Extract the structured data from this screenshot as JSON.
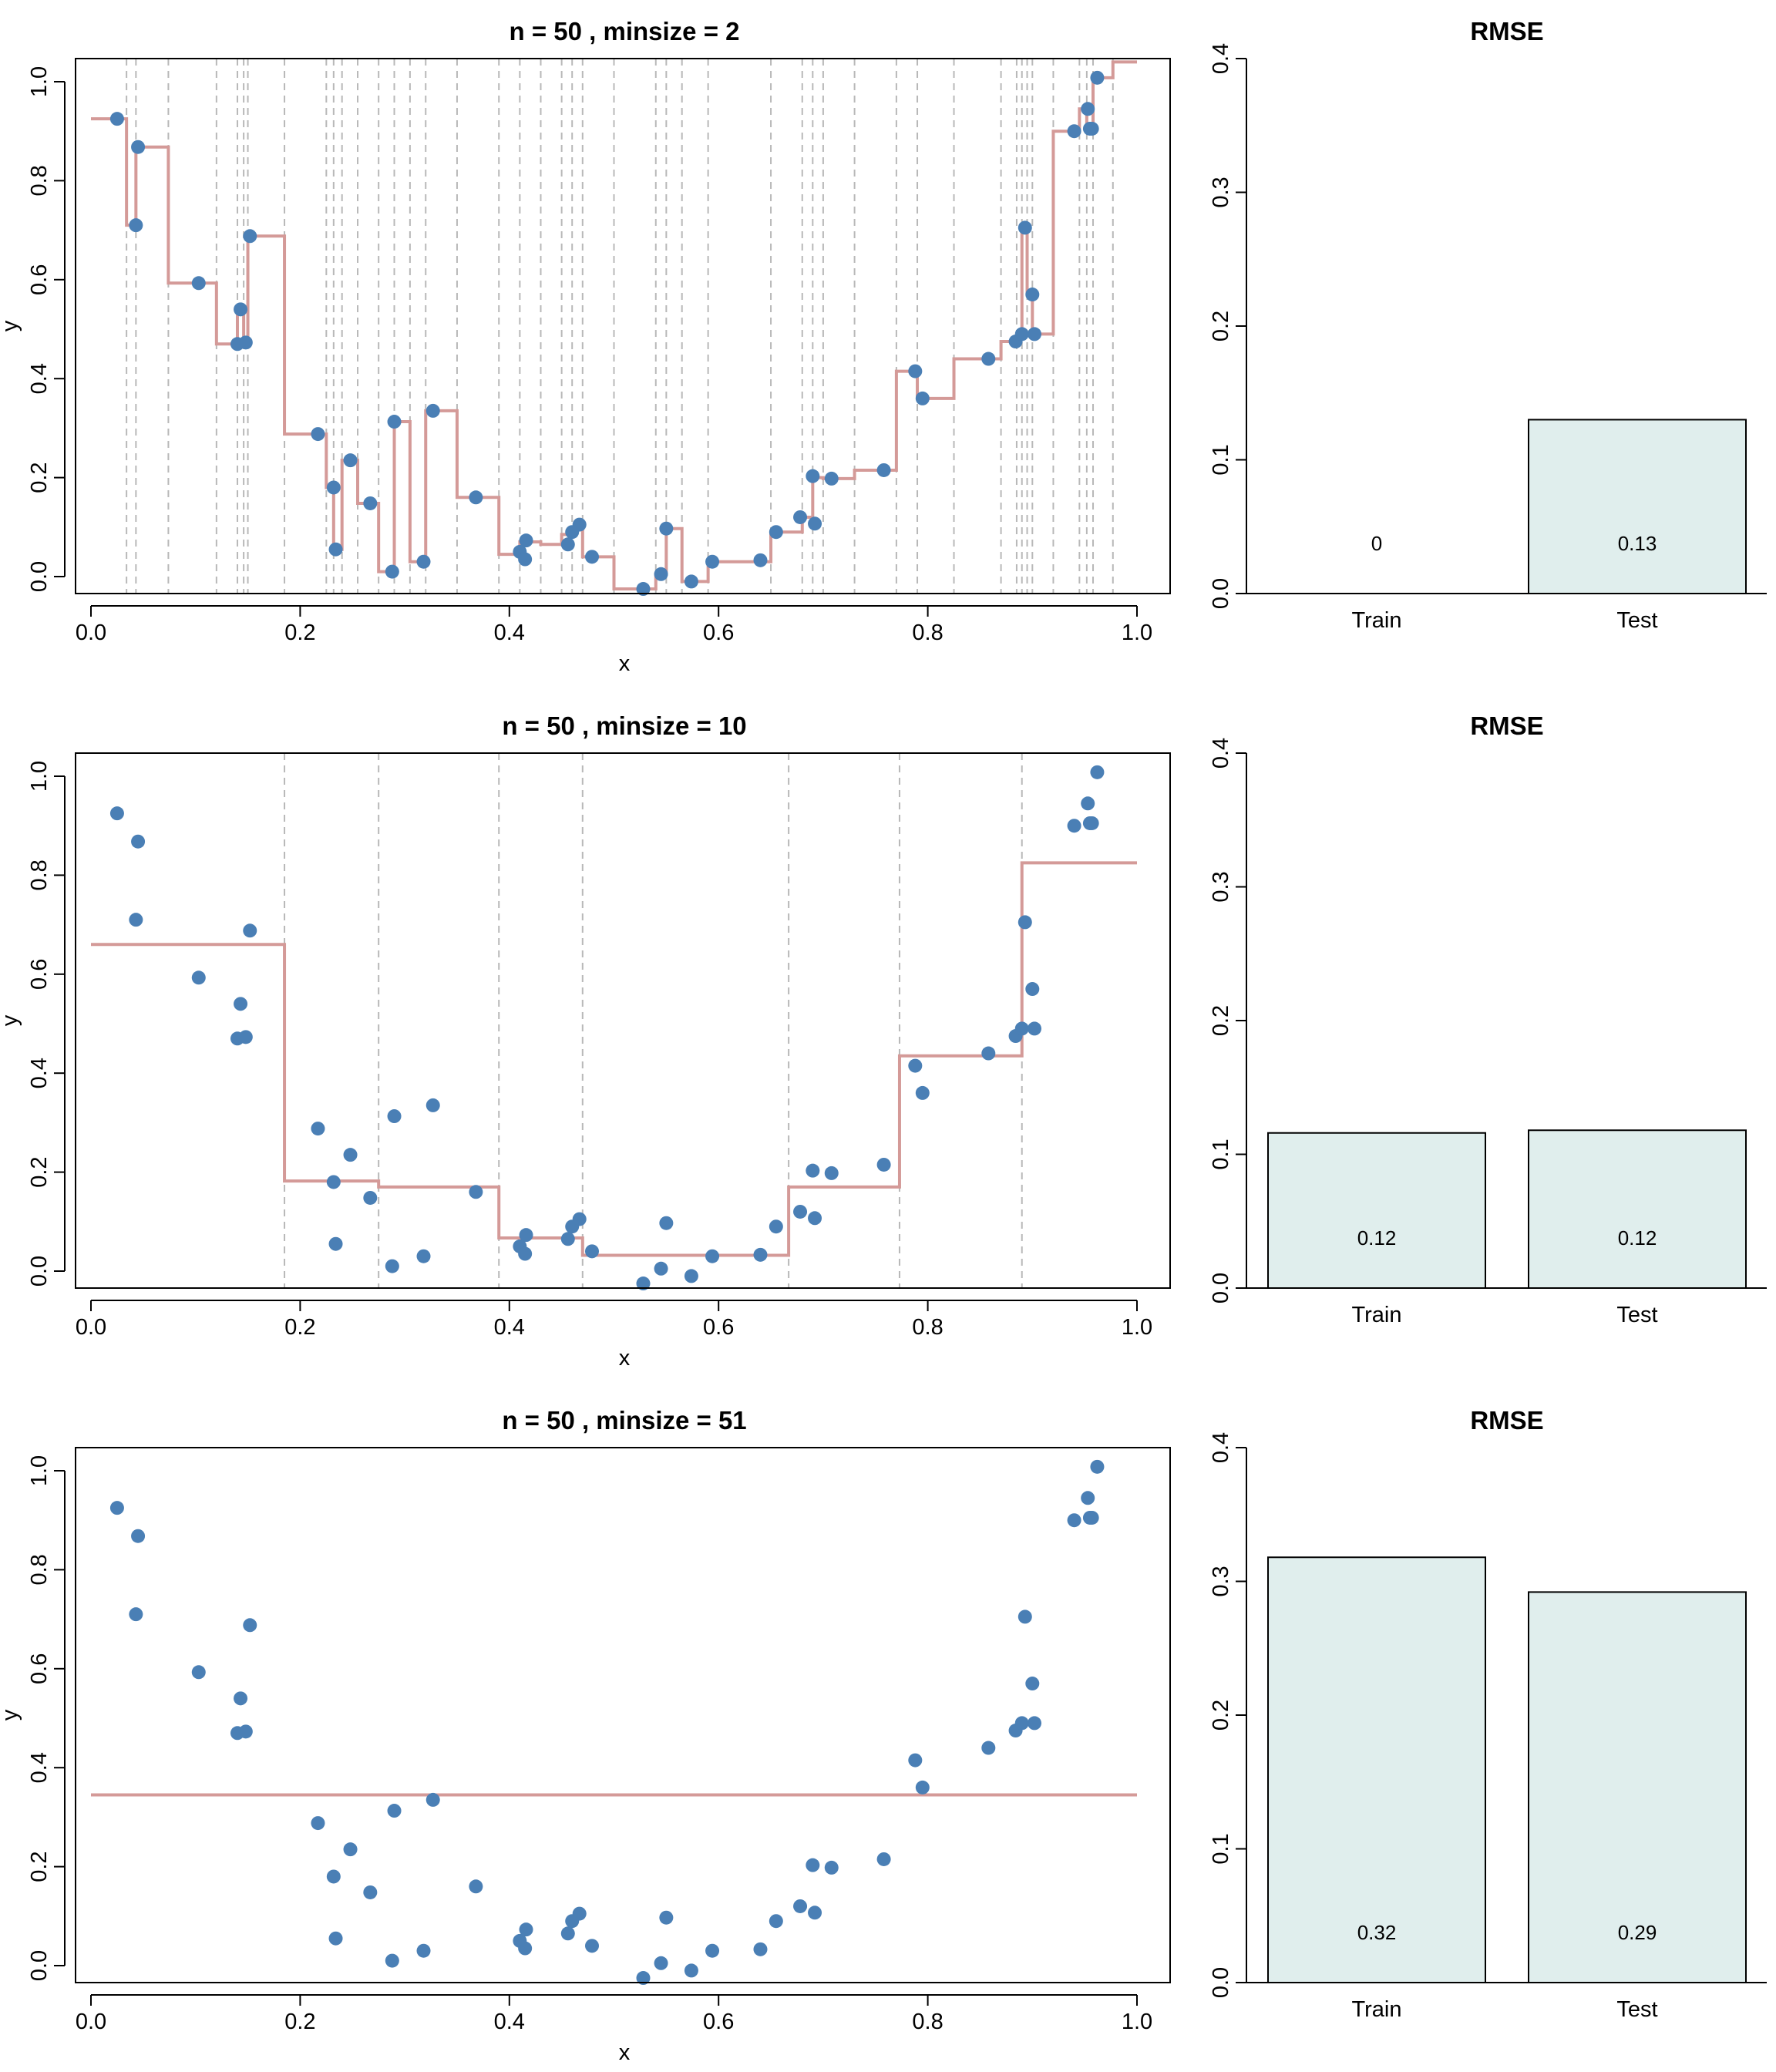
{
  "chart_data": [
    {
      "type": "scatter",
      "title": "n = 50 , minsize = 2",
      "xlabel": "x",
      "ylabel": "y",
      "xlim": [
        0,
        1
      ],
      "ylim": [
        -0.03,
        1.04
      ],
      "xticks": [
        "0.0",
        "0.2",
        "0.4",
        "0.6",
        "0.8",
        "1.0"
      ],
      "yticks": [
        "0.0",
        "0.2",
        "0.4",
        "0.6",
        "0.8",
        "1.0"
      ],
      "points": "shared",
      "splits": [
        0.034,
        0.043,
        0.074,
        0.12,
        0.14,
        0.146,
        0.15,
        0.185,
        0.225,
        0.232,
        0.24,
        0.255,
        0.275,
        0.29,
        0.305,
        0.32,
        0.35,
        0.39,
        0.41,
        0.43,
        0.45,
        0.46,
        0.47,
        0.5,
        0.54,
        0.55,
        0.565,
        0.59,
        0.65,
        0.68,
        0.69,
        0.7,
        0.73,
        0.77,
        0.79,
        0.825,
        0.87,
        0.885,
        0.89,
        0.895,
        0.9,
        0.92,
        0.945,
        0.952,
        0.958,
        0.977
      ],
      "fit": {
        "breaks": [
          0,
          0.034,
          0.043,
          0.074,
          0.12,
          0.14,
          0.146,
          0.15,
          0.185,
          0.225,
          0.232,
          0.24,
          0.255,
          0.275,
          0.29,
          0.305,
          0.32,
          0.35,
          0.39,
          0.41,
          0.43,
          0.45,
          0.46,
          0.47,
          0.5,
          0.54,
          0.55,
          0.565,
          0.59,
          0.65,
          0.68,
          0.69,
          0.7,
          0.73,
          0.77,
          0.79,
          0.825,
          0.87,
          0.885,
          0.89,
          0.895,
          0.9,
          0.92,
          0.945,
          0.952,
          0.958,
          0.977,
          1.0
        ],
        "values": [
          0.925,
          0.71,
          0.868,
          0.593,
          0.47,
          0.54,
          0.473,
          0.688,
          0.288,
          0.18,
          0.055,
          0.235,
          0.148,
          0.01,
          0.313,
          0.03,
          0.335,
          0.16,
          0.045,
          0.07,
          0.065,
          0.085,
          0.1,
          0.04,
          -0.025,
          0.005,
          0.097,
          -0.01,
          0.03,
          0.09,
          0.12,
          0.2,
          0.198,
          0.215,
          0.415,
          0.36,
          0.44,
          0.475,
          0.49,
          0.705,
          0.57,
          0.49,
          0.9,
          0.945,
          0.905,
          1.008,
          1.04
        ]
      }
    },
    {
      "type": "bar",
      "title": "RMSE",
      "categories": [
        "Train",
        "Test"
      ],
      "values": [
        0.0,
        0.13
      ],
      "labels": [
        "0",
        "0.13"
      ],
      "ylim": [
        0,
        0.4
      ],
      "yticks": [
        "0.0",
        "0.1",
        "0.2",
        "0.3",
        "0.4"
      ]
    },
    {
      "type": "scatter",
      "title": "n = 50 , minsize = 10",
      "xlabel": "x",
      "ylabel": "y",
      "xlim": [
        0,
        1
      ],
      "ylim": [
        -0.03,
        1.04
      ],
      "xticks": [
        "0.0",
        "0.2",
        "0.4",
        "0.6",
        "0.8",
        "1.0"
      ],
      "yticks": [
        "0.0",
        "0.2",
        "0.4",
        "0.6",
        "0.8",
        "1.0"
      ],
      "points": "shared",
      "splits": [
        0.185,
        0.275,
        0.39,
        0.47,
        0.667,
        0.773,
        0.89
      ],
      "fit": {
        "breaks": [
          0,
          0.185,
          0.275,
          0.39,
          0.47,
          0.667,
          0.773,
          0.89,
          1.0
        ],
        "values": [
          0.66,
          0.182,
          0.17,
          0.067,
          0.032,
          0.17,
          0.435,
          0.825
        ]
      }
    },
    {
      "type": "bar",
      "title": "RMSE",
      "categories": [
        "Train",
        "Test"
      ],
      "values": [
        0.116,
        0.118
      ],
      "labels": [
        "0.12",
        "0.12"
      ],
      "ylim": [
        0,
        0.4
      ],
      "yticks": [
        "0.0",
        "0.1",
        "0.2",
        "0.3",
        "0.4"
      ]
    },
    {
      "type": "scatter",
      "title": "n = 50 , minsize = 51",
      "xlabel": "x",
      "ylabel": "y",
      "xlim": [
        0,
        1
      ],
      "ylim": [
        -0.03,
        1.04
      ],
      "xticks": [
        "0.0",
        "0.2",
        "0.4",
        "0.6",
        "0.8",
        "1.0"
      ],
      "yticks": [
        "0.0",
        "0.2",
        "0.4",
        "0.6",
        "0.8",
        "1.0"
      ],
      "points": "shared",
      "splits": [],
      "fit": {
        "breaks": [
          0,
          1.0
        ],
        "values": [
          0.345
        ]
      }
    },
    {
      "type": "bar",
      "title": "RMSE",
      "categories": [
        "Train",
        "Test"
      ],
      "values": [
        0.318,
        0.292
      ],
      "labels": [
        "0.32",
        "0.29"
      ],
      "ylim": [
        0,
        0.4
      ],
      "yticks": [
        "0.0",
        "0.1",
        "0.2",
        "0.3",
        "0.4"
      ]
    }
  ],
  "points": {
    "x": [
      0.025,
      0.043,
      0.045,
      0.103,
      0.14,
      0.143,
      0.148,
      0.152,
      0.217,
      0.232,
      0.234,
      0.248,
      0.267,
      0.288,
      0.29,
      0.318,
      0.327,
      0.368,
      0.41,
      0.415,
      0.416,
      0.456,
      0.46,
      0.467,
      0.479,
      0.528,
      0.545,
      0.55,
      0.574,
      0.594,
      0.64,
      0.655,
      0.678,
      0.69,
      0.692,
      0.708,
      0.758,
      0.788,
      0.795,
      0.858,
      0.884,
      0.89,
      0.893,
      0.9,
      0.902,
      0.94,
      0.953,
      0.955,
      0.957,
      0.962
    ],
    "y": [
      0.925,
      0.71,
      0.868,
      0.593,
      0.47,
      0.54,
      0.473,
      0.688,
      0.288,
      0.18,
      0.055,
      0.235,
      0.148,
      0.01,
      0.313,
      0.03,
      0.335,
      0.16,
      0.05,
      0.035,
      0.073,
      0.065,
      0.09,
      0.105,
      0.04,
      -0.025,
      0.005,
      0.097,
      -0.01,
      0.03,
      0.033,
      0.09,
      0.12,
      0.203,
      0.107,
      0.198,
      0.215,
      0.415,
      0.36,
      0.44,
      0.475,
      0.49,
      0.705,
      0.57,
      0.49,
      0.9,
      0.945,
      0.905,
      0.905,
      1.008
    ]
  }
}
